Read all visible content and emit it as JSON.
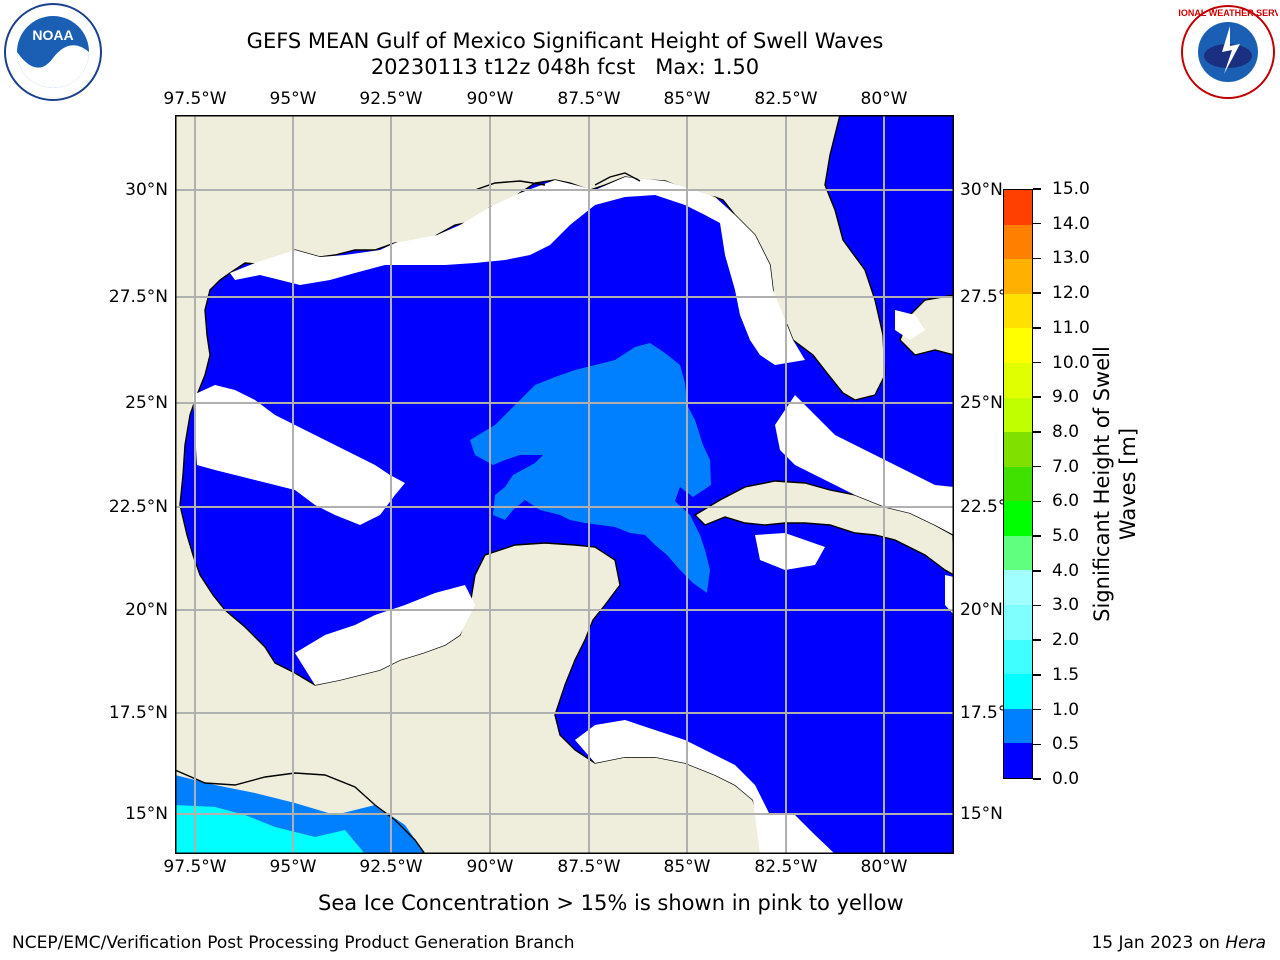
{
  "header": {
    "title": "GEFS MEAN Gulf of Mexico Significant Height of Swell Waves",
    "subtitle": "20230113 t12z 048h fcst   Max: 1.50",
    "logo_left": {
      "icon": "noaa-logo",
      "text": "NOAA"
    },
    "logo_right": {
      "icon": "national-weather-service-logo",
      "text": "NATIONAL WEATHER SERVICE"
    }
  },
  "map": {
    "lon_labels": [
      "97.5°W",
      "95°W",
      "92.5°W",
      "90°W",
      "87.5°W",
      "85°W",
      "82.5°W",
      "80°W"
    ],
    "lat_labels": [
      "30°N",
      "27.5°N",
      "25°N",
      "22.5°N",
      "20°N",
      "17.5°N",
      "15°N"
    ],
    "right_lat_labels": [
      "30°N",
      "27.5°",
      "25°N",
      "22.5°",
      "20°N",
      "17.5°",
      "15°N"
    ],
    "extent": {
      "lon": [
        -98,
        -78.2
      ],
      "lat": [
        14,
        31.7
      ]
    },
    "land_color": "#efeedd",
    "grid": true
  },
  "colorbar": {
    "label": "Significant Height of Swell Waves [m]",
    "ticks": [
      "0.0",
      "0.5",
      "1.0",
      "1.5",
      "2.0",
      "3.0",
      "4.0",
      "5.0",
      "6.0",
      "7.0",
      "8.0",
      "9.0",
      "10.0",
      "11.0",
      "12.0",
      "13.0",
      "14.0",
      "15.0"
    ],
    "colors": [
      "#0000ff",
      "#0080ff",
      "#00ffff",
      "#40ffff",
      "#80ffff",
      "#a0ffff",
      "#60ff80",
      "#00ff00",
      "#40e000",
      "#80e000",
      "#c0ff00",
      "#e0ff00",
      "#ffff00",
      "#ffe000",
      "#ffb000",
      "#ff8000",
      "#ff4000",
      "#ff0000"
    ]
  },
  "caption": "Sea Ice Concentration > 15% is shown in pink to yellow",
  "footer": {
    "left": "NCEP/EMC/Verification Post Processing Product Generation Branch",
    "right_prefix": "15 Jan 2023 on ",
    "right_italic": "Hera"
  }
}
